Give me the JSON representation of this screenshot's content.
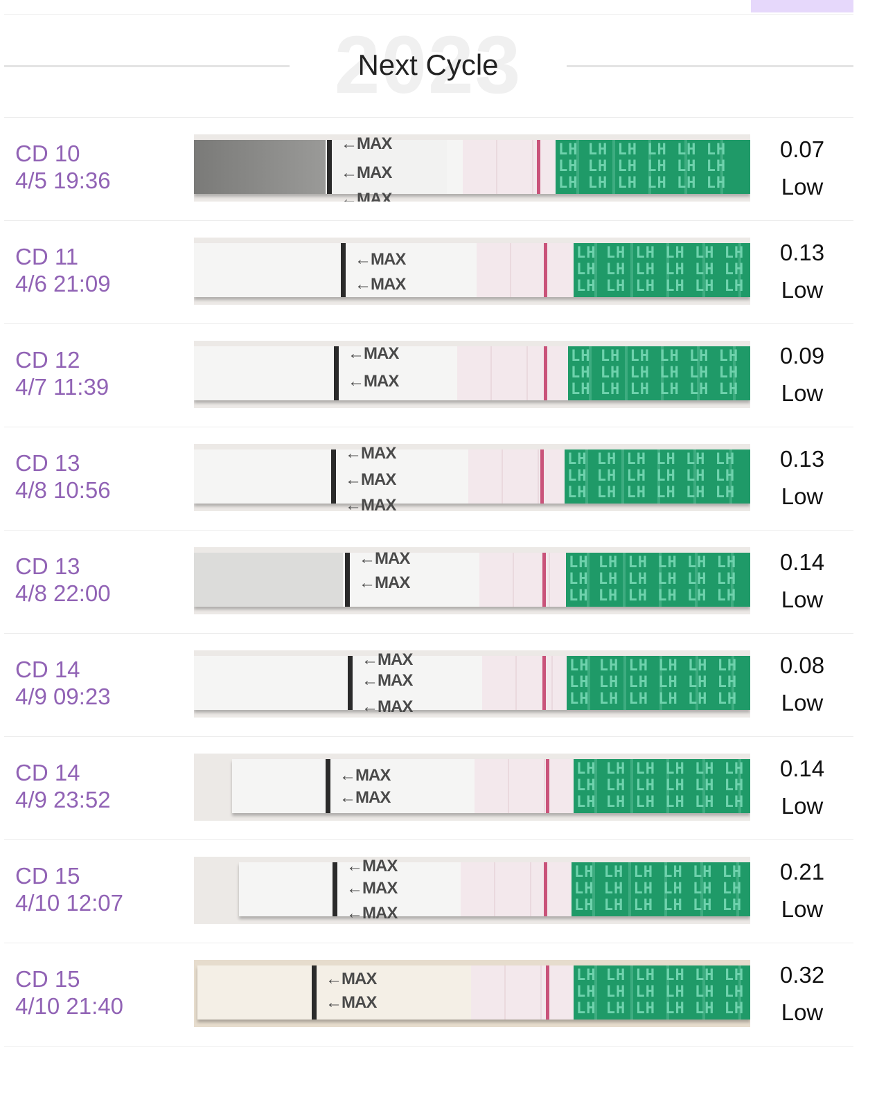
{
  "header": {
    "year_watermark": "2023",
    "title": "Next Cycle"
  },
  "strip_labels": {
    "max": "←MAX",
    "lh": "LH LH LH LH LH LH"
  },
  "colors": {
    "accent_purple": "#9163b5",
    "tab_highlight": "#e6d8fb",
    "strip_green": "#1f9a68",
    "test_line": "#c9537a"
  },
  "tests": [
    {
      "cycle_day": "CD 10",
      "datetime": "4/5 19:36",
      "value": "0.07",
      "level": "Low"
    },
    {
      "cycle_day": "CD 11",
      "datetime": "4/6 21:09",
      "value": "0.13",
      "level": "Low"
    },
    {
      "cycle_day": "CD 12",
      "datetime": "4/7 11:39",
      "value": "0.09",
      "level": "Low"
    },
    {
      "cycle_day": "CD 13",
      "datetime": "4/8 10:56",
      "value": "0.13",
      "level": "Low"
    },
    {
      "cycle_day": "CD 13",
      "datetime": "4/8 22:00",
      "value": "0.14",
      "level": "Low"
    },
    {
      "cycle_day": "CD 14",
      "datetime": "4/9 09:23",
      "value": "0.08",
      "level": "Low"
    },
    {
      "cycle_day": "CD 14",
      "datetime": "4/9 23:52",
      "value": "0.14",
      "level": "Low"
    },
    {
      "cycle_day": "CD 15",
      "datetime": "4/10 12:07",
      "value": "0.21",
      "level": "Low"
    },
    {
      "cycle_day": "CD 15",
      "datetime": "4/10 21:40",
      "value": "0.32",
      "level": "Low"
    }
  ]
}
